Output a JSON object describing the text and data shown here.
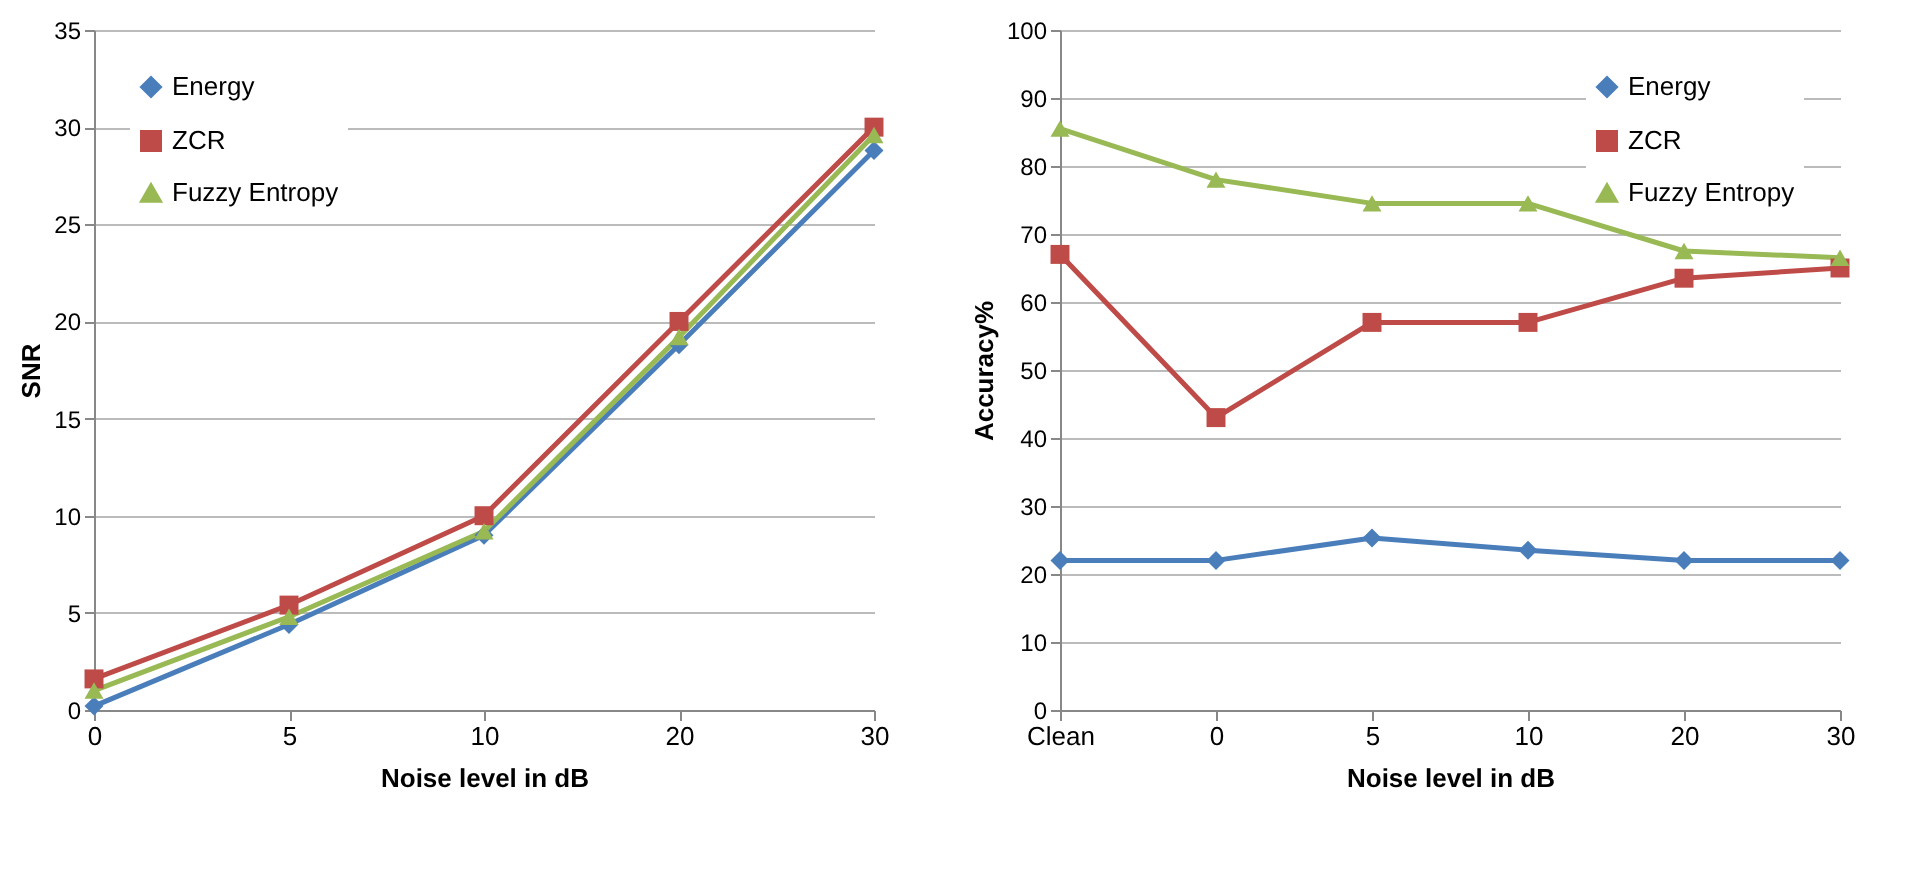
{
  "chart_data": [
    {
      "type": "line",
      "xlabel": "Noise level in dB",
      "ylabel": "SNR",
      "categories": [
        "0",
        "5",
        "10",
        "20",
        "30"
      ],
      "ylim": [
        0,
        35
      ],
      "yticks": [
        0,
        5,
        10,
        15,
        20,
        25,
        30,
        35
      ],
      "grid": "y",
      "legend": "top left",
      "series": [
        {
          "name": "Energy",
          "color": "#4a7ebb",
          "marker": "diamond",
          "values": [
            0.2,
            4.4,
            9.0,
            18.8,
            28.8
          ]
        },
        {
          "name": "ZCR",
          "color": "#be4b48",
          "marker": "square",
          "values": [
            1.6,
            5.4,
            10.0,
            20.0,
            30.0
          ]
        },
        {
          "name": "Fuzzy Entropy",
          "color": "#98b954",
          "marker": "triangle",
          "values": [
            1.0,
            4.8,
            9.2,
            19.2,
            29.6
          ]
        }
      ]
    },
    {
      "type": "line",
      "xlabel": "Noise level in dB",
      "ylabel": "Accuracy%",
      "categories": [
        "Clean",
        "0",
        "5",
        "10",
        "20",
        "30"
      ],
      "ylim": [
        0,
        100
      ],
      "yticks": [
        0,
        10,
        20,
        30,
        40,
        50,
        60,
        70,
        80,
        90,
        100
      ],
      "grid": "y",
      "legend": "top right",
      "series": [
        {
          "name": "Energy",
          "color": "#4a7ebb",
          "marker": "diamond",
          "values": [
            22,
            22,
            25.3,
            23.5,
            22,
            22
          ]
        },
        {
          "name": "ZCR",
          "color": "#be4b48",
          "marker": "square",
          "values": [
            67,
            43,
            57,
            57,
            63.5,
            65
          ]
        },
        {
          "name": "Fuzzy Entropy",
          "color": "#98b954",
          "marker": "triangle",
          "values": [
            85.5,
            78,
            74.5,
            74.5,
            67.5,
            66.5
          ]
        }
      ]
    }
  ]
}
